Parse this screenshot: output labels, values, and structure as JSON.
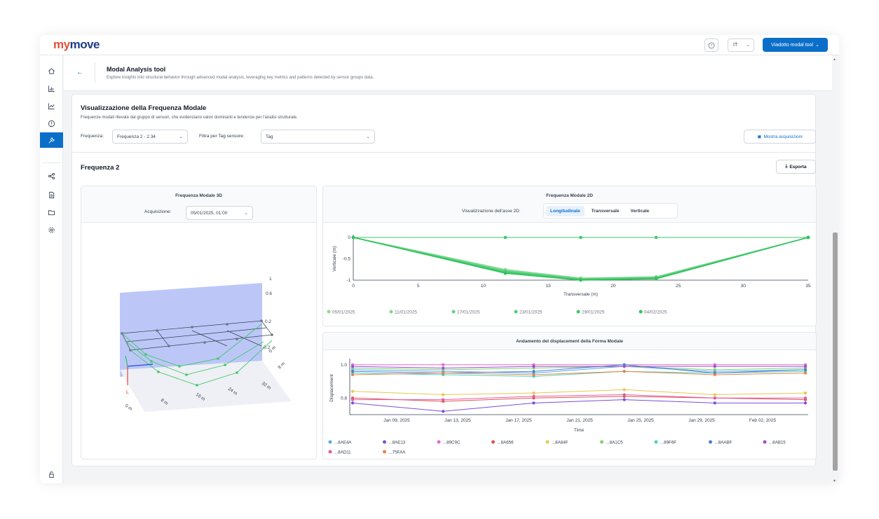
{
  "app": {
    "logo_part1": "my",
    "logo_part2": "move",
    "help_icon": "question-circle-icon",
    "language": "IT",
    "tool_button": "Viadotto modal tool"
  },
  "sidebar": {
    "items": [
      {
        "icon": "home-icon"
      },
      {
        "icon": "bar-chart-icon"
      },
      {
        "icon": "line-chart-icon"
      },
      {
        "icon": "info-icon"
      },
      {
        "icon": "wrench-icon",
        "active": true
      },
      {
        "icon": "share-icon"
      },
      {
        "icon": "document-icon"
      },
      {
        "icon": "folder-icon"
      },
      {
        "icon": "settings-icon"
      }
    ],
    "bottom_icon": "lock-icon"
  },
  "header": {
    "title": "Modal Analysis tool",
    "subtitle": "Explore insights into structural behavior through advanced modal analysis, leveraging key metrics and patterns detected by sensor groups data."
  },
  "section": {
    "title": "Visualizzazione della Frequenza Modale",
    "subtitle": "Frequenze modali rilevate dal gruppo di sensori, che evidenziano valori dominanti e tendenze per l'analisi strutturale.",
    "frequency_label": "Frequenza:",
    "frequency_value": "Frequenza 2 - 2.34",
    "tag_filter_label": "Filtra per Tag sensore:",
    "tag_filter_placeholder": "Tag",
    "show_acquisitions_button": "Mostra acquisizioni"
  },
  "frequency_panel": {
    "title": "Frequenza 2",
    "export_button": "Esporta"
  },
  "card3d": {
    "title": "Frequenza Modale 3D",
    "acquisition_label": "Acquisizione:",
    "acquisition_value": "05/01/2025, 01:00",
    "z_ticks": [
      "1",
      "0.6",
      "0.2",
      "-0.2"
    ],
    "long_ticks": [
      "0 m",
      "8 m",
      "16 m",
      "24 m",
      "32 m"
    ],
    "trans_ticks": [
      "0 m",
      "8 m"
    ],
    "axis_label": "L"
  },
  "card2d": {
    "title": "Frequenza Modale 2D",
    "axis_view_label": "Visualizzazione dell'asse 2D:",
    "tabs": [
      {
        "label": "Longitudinale",
        "active": true
      },
      {
        "label": "Transversale",
        "active": false
      },
      {
        "label": "Verticale",
        "active": false
      }
    ]
  },
  "card_disp": {
    "title": "Andamento del displacement della Forma Modale"
  },
  "chart_data": [
    {
      "type": "line",
      "title": "Frequenza Modale 2D",
      "xlabel": "Transversale (m)",
      "ylabel": "Verticale (m)",
      "xlim": [
        0,
        35
      ],
      "ylim": [
        -1.0,
        0
      ],
      "x_ticks": [
        0,
        5,
        10,
        15,
        20,
        25,
        30,
        35
      ],
      "y_ticks": [
        0,
        -0.5,
        -1.0
      ],
      "reference_line": {
        "x": [
          0,
          11.7,
          17.5,
          23.3,
          35
        ],
        "y": [
          0,
          0,
          0,
          0,
          0
        ]
      },
      "x": [
        0,
        11.7,
        17.5,
        23.3,
        35
      ],
      "series": [
        {
          "name": "05/01/2025",
          "color": "#8fd9a0",
          "values": [
            0,
            -0.75,
            -0.95,
            -0.92,
            0
          ]
        },
        {
          "name": "11/01/2025",
          "color": "#7bd692",
          "values": [
            0,
            -0.77,
            -0.96,
            -0.93,
            0
          ]
        },
        {
          "name": "17/01/2025",
          "color": "#66d283",
          "values": [
            0,
            -0.79,
            -0.97,
            -0.94,
            0
          ]
        },
        {
          "name": "23/01/2025",
          "color": "#52cd75",
          "values": [
            0,
            -0.8,
            -0.98,
            -0.95,
            0
          ]
        },
        {
          "name": "29/01/2025",
          "color": "#3fc867",
          "values": [
            0,
            -0.82,
            -0.99,
            -0.96,
            0
          ]
        },
        {
          "name": "04/02/2025",
          "color": "#2dc35a",
          "values": [
            0,
            -0.84,
            -1.0,
            -0.97,
            0
          ]
        }
      ],
      "legend": "bottom"
    },
    {
      "type": "line",
      "title": "Andamento del displacement della Forma Modale",
      "xlabel": "Time",
      "ylabel": "Displacement",
      "x": [
        "2025-01-05",
        "2025-01-11",
        "2025-01-17",
        "2025-01-23",
        "2025-01-29",
        "2025-02-04"
      ],
      "x_tick_labels": [
        "Jan 09, 2025",
        "Jan 13, 2025",
        "Jan 17, 2025",
        "Jan 21, 2025",
        "Jan 25, 2025",
        "Jan 29, 2025",
        "Feb 02, 2025"
      ],
      "y_ticks": [
        1.0,
        0.8
      ],
      "ylim": [
        0.7,
        1.02
      ],
      "series": [
        {
          "name": "...8AE4A",
          "color": "#5aa9e6",
          "values": [
            0.97,
            0.96,
            0.95,
            0.99,
            0.96,
            0.97
          ]
        },
        {
          "name": "...8AE13",
          "color": "#7c4ddb",
          "values": [
            0.77,
            0.72,
            0.77,
            0.79,
            0.77,
            0.77
          ]
        },
        {
          "name": "...89C9C",
          "color": "#e06bd1",
          "values": [
            1.0,
            1.0,
            1.0,
            1.0,
            1.0,
            1.0
          ]
        },
        {
          "name": "...8A656",
          "color": "#e05252",
          "values": [
            0.8,
            0.78,
            0.8,
            0.81,
            0.8,
            0.79
          ]
        },
        {
          "name": "...8A84F",
          "color": "#e5c84f",
          "values": [
            0.84,
            0.82,
            0.83,
            0.85,
            0.82,
            0.83
          ]
        },
        {
          "name": "...8A1C5",
          "color": "#7ed46b",
          "values": [
            0.98,
            0.97,
            0.98,
            0.99,
            0.97,
            0.98
          ]
        },
        {
          "name": "...89F6F",
          "color": "#4fd1b8",
          "values": [
            0.95,
            0.94,
            0.93,
            0.96,
            0.95,
            0.96
          ]
        },
        {
          "name": "...8AABF",
          "color": "#4a7fd8",
          "values": [
            0.96,
            0.95,
            0.96,
            1.0,
            0.95,
            0.97
          ]
        },
        {
          "name": "...8AB15",
          "color": "#9c4dd6",
          "values": [
            0.99,
            0.98,
            0.99,
            0.99,
            0.99,
            0.99
          ]
        },
        {
          "name": "...8AD11",
          "color": "#e35aa5",
          "values": [
            0.79,
            0.79,
            0.81,
            0.82,
            0.8,
            0.8
          ]
        },
        {
          "name": "...75FAA",
          "color": "#e8834a",
          "values": [
            0.94,
            0.95,
            0.94,
            0.96,
            0.94,
            0.95
          ]
        }
      ],
      "legend": "bottom"
    }
  ]
}
